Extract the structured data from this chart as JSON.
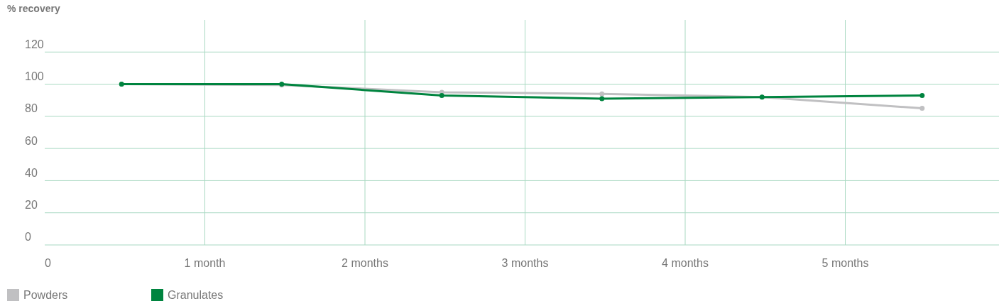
{
  "chart_data": {
    "type": "line",
    "ylabel": "% recovery",
    "x": [
      0.48,
      1.48,
      2.48,
      3.48,
      4.48,
      5.48
    ],
    "xlim": [
      0,
      5.96
    ],
    "xticks": [
      0,
      {
        "value": 1,
        "label": "1 month"
      },
      {
        "value": 2,
        "label": "2 months"
      },
      {
        "value": 3,
        "label": "3 months"
      },
      {
        "value": 4,
        "label": "4 months"
      },
      {
        "value": 5,
        "label": "5 months"
      }
    ],
    "ylim": [
      0,
      140
    ],
    "yticks": [
      0,
      20,
      40,
      60,
      80,
      100,
      120
    ],
    "grid": true,
    "legend": "bottom",
    "marker": "circle",
    "line_style": "solid",
    "series": [
      {
        "name": "Powders",
        "color": "#c0c0c2",
        "values": [
          100,
          99.5,
          95,
          94,
          92,
          85
        ]
      },
      {
        "name": "Granulates",
        "color": "#00843f",
        "values": [
          100,
          100,
          93,
          91,
          92,
          93
        ]
      }
    ]
  }
}
